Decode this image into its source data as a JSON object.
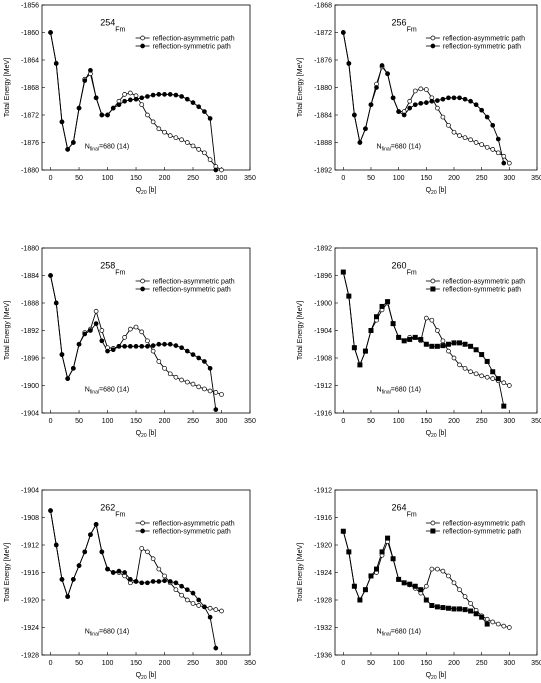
{
  "chart_data": [
    {
      "type": "line",
      "title_mass": "254",
      "title": "Fm",
      "ylabel": "Total Energy [MeV]",
      "xlabel": "Q",
      "xlabel_sub": "20",
      "xlabel_rest": "[b]",
      "annotation": "N",
      "annotation_sub": "final",
      "annotation_rest": "=680 (14)",
      "legend": "upper right",
      "xlim": [
        -15,
        350
      ],
      "xticks": [
        0,
        50,
        100,
        150,
        200,
        250,
        300,
        350
      ],
      "ylim": [
        -1880,
        -1856
      ],
      "yticks": [
        -1856,
        -1860,
        -1864,
        -1868,
        -1872,
        -1876,
        -1880
      ],
      "x": [
        0,
        10,
        20,
        30,
        40,
        50,
        60,
        70,
        80,
        90,
        100,
        110,
        120,
        130,
        140,
        150,
        160,
        170,
        180,
        190,
        200,
        210,
        220,
        230,
        240,
        250,
        260,
        270,
        280,
        290,
        300
      ],
      "series": [
        {
          "name": "reflection-asymmetric path",
          "color": "#000000",
          "marker": "open-circle",
          "values": [
            -1860,
            -1864.5,
            -1873,
            -1877,
            -1876,
            -1871,
            -1866.8,
            -1866,
            -1869.5,
            -1872,
            -1872,
            -1871,
            -1870,
            -1869,
            -1868.8,
            -1869.2,
            -1870.5,
            -1872,
            -1873,
            -1874,
            -1874.5,
            -1875,
            -1875.3,
            -1875.6,
            -1876,
            -1876.5,
            -1877,
            -1877.5,
            -1878.5,
            -1879.5,
            -1880
          ]
        },
        {
          "name": "reflection-symmetric path",
          "color": "#000000",
          "marker": "circle",
          "values": [
            -1860,
            -1864.5,
            -1873,
            -1877,
            -1876,
            -1871,
            -1867,
            -1865.5,
            -1869.5,
            -1872,
            -1872,
            -1871,
            -1870.5,
            -1870,
            -1869.8,
            -1869.7,
            -1869.5,
            -1869.3,
            -1869.1,
            -1869,
            -1869,
            -1869,
            -1869.1,
            -1869.3,
            -1869.7,
            -1870.2,
            -1870.8,
            -1871.5,
            -1872.5,
            -1880,
            null
          ]
        }
      ]
    },
    {
      "type": "line",
      "title_mass": "256",
      "title": "Fm",
      "ylabel": "Total Energy [MeV]",
      "xlabel": "Q",
      "xlabel_sub": "20",
      "xlabel_rest": "[b]",
      "annotation": "N",
      "annotation_sub": "final",
      "annotation_rest": "=680 (14)",
      "legend": "upper right",
      "xlim": [
        -15,
        350
      ],
      "xticks": [
        0,
        50,
        100,
        150,
        200,
        250,
        300,
        350
      ],
      "ylim": [
        -1892,
        -1868
      ],
      "yticks": [
        -1868,
        -1872,
        -1876,
        -1880,
        -1884,
        -1888,
        -1892
      ],
      "x": [
        0,
        10,
        20,
        30,
        40,
        50,
        60,
        70,
        80,
        90,
        100,
        110,
        120,
        130,
        140,
        150,
        160,
        170,
        180,
        190,
        200,
        210,
        220,
        230,
        240,
        250,
        260,
        270,
        280,
        290,
        300
      ],
      "series": [
        {
          "name": "reflection-asymmetric path",
          "color": "#000000",
          "marker": "open-circle",
          "values": [
            -1872,
            -1876.5,
            -1884,
            -1888,
            -1886,
            -1882.5,
            -1879.5,
            -1877,
            -1878,
            -1881.5,
            -1883.5,
            -1883.5,
            -1882,
            -1880.5,
            -1880.2,
            -1880.3,
            -1881.5,
            -1883,
            -1884.3,
            -1885.5,
            -1886.5,
            -1887,
            -1887.3,
            -1887.6,
            -1888,
            -1888.3,
            -1888.7,
            -1889,
            -1889.5,
            -1890,
            -1891
          ]
        },
        {
          "name": "reflection-symmetric path",
          "color": "#000000",
          "marker": "circle",
          "values": [
            -1872,
            -1876.5,
            -1884,
            -1888,
            -1886,
            -1882.5,
            -1880,
            -1876.8,
            -1878,
            -1881.5,
            -1883.5,
            -1884,
            -1883,
            -1882.5,
            -1882.3,
            -1882.2,
            -1882,
            -1881.9,
            -1881.7,
            -1881.5,
            -1881.5,
            -1881.5,
            -1881.7,
            -1882,
            -1882.5,
            -1883.3,
            -1884.3,
            -1885.5,
            -1887.5,
            -1891,
            null
          ]
        }
      ]
    },
    {
      "type": "line",
      "title_mass": "258",
      "title": "Fm",
      "ylabel": "Total Energy [MeV]",
      "xlabel": "Q",
      "xlabel_sub": "20",
      "xlabel_rest": "[b]",
      "annotation": "N",
      "annotation_sub": "final",
      "annotation_rest": "=680 (14)",
      "legend": "upper right",
      "xlim": [
        -15,
        350
      ],
      "xticks": [
        0,
        50,
        100,
        150,
        200,
        250,
        300,
        350
      ],
      "ylim": [
        -1904,
        -1880
      ],
      "yticks": [
        -1880,
        -1884,
        -1888,
        -1892,
        -1896,
        -1900,
        -1904
      ],
      "x": [
        0,
        10,
        20,
        30,
        40,
        50,
        60,
        70,
        80,
        90,
        100,
        110,
        120,
        130,
        140,
        150,
        160,
        170,
        180,
        190,
        200,
        210,
        220,
        230,
        240,
        250,
        260,
        270,
        280,
        290,
        300
      ],
      "series": [
        {
          "name": "reflection-asymmetric path",
          "color": "#000000",
          "marker": "open-circle",
          "values": [
            -1884,
            -1888,
            -1895.5,
            -1899,
            -1897.5,
            -1894,
            -1892.3,
            -1891.8,
            -1889.2,
            -1892,
            -1894.5,
            -1894.6,
            -1894.3,
            -1893,
            -1891.8,
            -1891.5,
            -1892.2,
            -1893.5,
            -1895,
            -1896.5,
            -1897.5,
            -1898.3,
            -1898.8,
            -1899.2,
            -1899.5,
            -1899.8,
            -1900.2,
            -1900.5,
            -1900.8,
            -1901,
            -1901.3
          ]
        },
        {
          "name": "reflection-symmetric path",
          "color": "#000000",
          "marker": "circle",
          "values": [
            -1884,
            -1888,
            -1895.5,
            -1899,
            -1897.5,
            -1894,
            -1892.5,
            -1892,
            -1891,
            -1893.5,
            -1895,
            -1894.8,
            -1894.3,
            -1894.3,
            -1894.3,
            -1894.3,
            -1894.3,
            -1894.3,
            -1894.2,
            -1894,
            -1894,
            -1894,
            -1894.2,
            -1894.5,
            -1895,
            -1895.5,
            -1896,
            -1896.5,
            -1897.5,
            -1903.5,
            null
          ]
        }
      ]
    },
    {
      "type": "line",
      "title_mass": "260",
      "title": "Fm",
      "ylabel": "Total Energy [MeV]",
      "xlabel": "Q",
      "xlabel_sub": "20",
      "xlabel_rest": "[b]",
      "annotation": "N",
      "annotation_sub": "final",
      "annotation_rest": "=680 (14)",
      "legend": "upper right",
      "xlim": [
        -15,
        350
      ],
      "xticks": [
        0,
        50,
        100,
        150,
        200,
        250,
        300,
        350
      ],
      "ylim": [
        -1916,
        -1892
      ],
      "yticks": [
        -1892,
        -1896,
        -1900,
        -1904,
        -1908,
        -1912,
        -1916
      ],
      "x": [
        0,
        10,
        20,
        30,
        40,
        50,
        60,
        70,
        80,
        90,
        100,
        110,
        120,
        130,
        140,
        150,
        160,
        170,
        180,
        190,
        200,
        210,
        220,
        230,
        240,
        250,
        260,
        270,
        280,
        290,
        300
      ],
      "series": [
        {
          "name": "reflection-asymmetric path",
          "color": "#000000",
          "marker": "open-circle",
          "values": [
            -1895.5,
            -1899,
            -1906.5,
            -1909,
            -1907,
            -1904,
            -1902.5,
            -1901,
            -1900,
            -1903,
            -1905,
            -1905.5,
            -1905,
            -1905,
            -1905.5,
            -1902.2,
            -1902.5,
            -1904,
            -1905.5,
            -1907,
            -1908,
            -1909,
            -1909.5,
            -1910,
            -1910.3,
            -1910.6,
            -1910.8,
            -1911,
            -1911.3,
            -1911.6,
            -1912
          ]
        },
        {
          "name": "reflection-symmetric path",
          "color": "#000000",
          "marker": "square",
          "values": [
            -1895.5,
            -1899,
            -1906.5,
            -1909,
            -1907,
            -1904,
            -1902,
            -1900.5,
            -1899.8,
            -1903,
            -1905,
            -1905.5,
            -1905.3,
            -1905,
            -1905.3,
            -1906,
            -1906.3,
            -1906.3,
            -1906.2,
            -1906,
            -1905.8,
            -1905.8,
            -1906,
            -1906.3,
            -1906.8,
            -1907.5,
            -1908.5,
            -1910,
            -1911,
            -1915,
            null
          ]
        }
      ]
    },
    {
      "type": "line",
      "title_mass": "262",
      "title": "Fm",
      "ylabel": "Total Energy [MeV]",
      "xlabel": "Q",
      "xlabel_sub": "20",
      "xlabel_rest": "[b]",
      "annotation": "N",
      "annotation_sub": "final",
      "annotation_rest": "=680 (14)",
      "legend": "upper right",
      "xlim": [
        -15,
        350
      ],
      "xticks": [
        0,
        50,
        100,
        150,
        200,
        250,
        300,
        350
      ],
      "ylim": [
        -1928,
        -1904
      ],
      "yticks": [
        -1904,
        -1908,
        -1912,
        -1916,
        -1920,
        -1924,
        -1928
      ],
      "x": [
        0,
        10,
        20,
        30,
        40,
        50,
        60,
        70,
        80,
        90,
        100,
        110,
        120,
        130,
        140,
        150,
        160,
        170,
        180,
        190,
        200,
        210,
        220,
        230,
        240,
        250,
        260,
        270,
        280,
        290,
        300
      ],
      "series": [
        {
          "name": "reflection-asymmetric path",
          "color": "#000000",
          "marker": "open-circle",
          "values": [
            -1907,
            -1912,
            -1917,
            -1919.5,
            -1917,
            -1915,
            -1913,
            -1910.5,
            -1909,
            -1913,
            -1915.5,
            -1916,
            -1916,
            -1916.5,
            -1917.5,
            -1917.3,
            -1912.5,
            -1913,
            -1914,
            -1915.5,
            -1916.5,
            -1917.5,
            -1918.5,
            -1919.3,
            -1920,
            -1920.5,
            -1920.8,
            -1921,
            -1921.2,
            -1921.4,
            -1921.6
          ]
        },
        {
          "name": "reflection-symmetric path",
          "color": "#000000",
          "marker": "circle",
          "values": [
            -1907,
            -1912,
            -1917,
            -1919.5,
            -1917,
            -1915,
            -1913,
            -1910.5,
            -1909,
            -1913,
            -1915.5,
            -1916,
            -1915.8,
            -1916,
            -1917,
            -1917.3,
            -1917.5,
            -1917.5,
            -1917.3,
            -1917.3,
            -1917.2,
            -1917.3,
            -1917.5,
            -1918,
            -1918.5,
            -1919,
            -1920,
            -1921,
            -1922.5,
            -1927,
            null
          ]
        }
      ]
    },
    {
      "type": "line",
      "title_mass": "264",
      "title": "Fm",
      "ylabel": "Total Energy [MeV]",
      "xlabel": "Q",
      "xlabel_sub": "20",
      "xlabel_rest": "[b]",
      "annotation": "N",
      "annotation_sub": "final",
      "annotation_rest": "=680 (14)",
      "legend": "upper right",
      "xlim": [
        -15,
        350
      ],
      "xticks": [
        0,
        50,
        100,
        150,
        200,
        250,
        300,
        350
      ],
      "ylim": [
        -1936,
        -1912
      ],
      "yticks": [
        -1912,
        -1916,
        -1920,
        -1924,
        -1928,
        -1932,
        -1936
      ],
      "x": [
        0,
        10,
        20,
        30,
        40,
        50,
        60,
        70,
        80,
        90,
        100,
        110,
        120,
        130,
        140,
        150,
        160,
        170,
        180,
        190,
        200,
        210,
        220,
        230,
        240,
        250,
        260,
        270,
        280,
        290,
        300
      ],
      "series": [
        {
          "name": "reflection-asymmetric path",
          "color": "#000000",
          "marker": "open-circle",
          "values": [
            -1918,
            -1921,
            -1926,
            -1928,
            -1926.5,
            -1924.5,
            -1924,
            -1921.5,
            -1919.5,
            -1922,
            -1925,
            -1925.5,
            -1925.8,
            -1926.3,
            -1927,
            -1926,
            -1923.5,
            -1923.5,
            -1923.8,
            -1924.5,
            -1925.5,
            -1926.5,
            -1927.5,
            -1928.5,
            -1929.5,
            -1930.3,
            -1930.8,
            -1931.2,
            -1931.5,
            -1931.8,
            -1932
          ]
        },
        {
          "name": "reflection-symmetric path",
          "color": "#000000",
          "marker": "square",
          "values": [
            -1918,
            -1921,
            -1926,
            -1928,
            -1926.5,
            -1924.5,
            -1923.5,
            -1921,
            -1919,
            -1922,
            -1925,
            -1925.5,
            -1925.7,
            -1926,
            -1926.5,
            -1928,
            -1928.8,
            -1929,
            -1929.1,
            -1929.2,
            -1929.3,
            -1929.3,
            -1929.4,
            -1929.6,
            -1930,
            -1930.5,
            -1931.5,
            null,
            null,
            null,
            null
          ]
        }
      ]
    }
  ]
}
